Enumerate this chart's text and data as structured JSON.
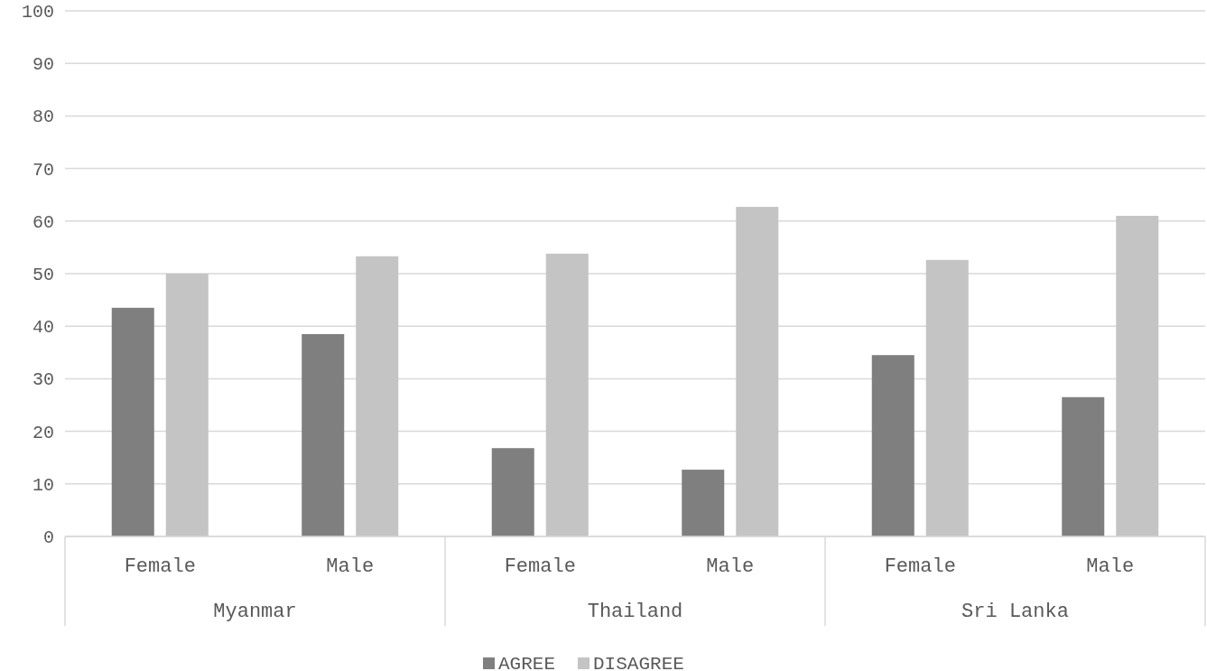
{
  "chart_data": {
    "type": "bar",
    "categories": [
      "Female",
      "Male",
      "Female",
      "Male",
      "Female",
      "Male"
    ],
    "series": [
      {
        "name": "AGREE",
        "color": "#7f7f7f",
        "values": [
          43.5,
          38.5,
          16.8,
          12.7,
          34.5,
          26.5
        ]
      },
      {
        "name": "DISAGREE",
        "color": "#c3c4c3",
        "values": [
          50.0,
          53.3,
          53.8,
          62.7,
          52.6,
          61.0
        ]
      }
    ],
    "annotations": [
      "Myanmar",
      "Thailand",
      "Sri Lanka"
    ],
    "ylim": [
      0,
      100
    ],
    "yticks": [
      0,
      10,
      20,
      30,
      40,
      50,
      60,
      70,
      80,
      90,
      100
    ],
    "grid": "y",
    "legend": "bottom"
  }
}
